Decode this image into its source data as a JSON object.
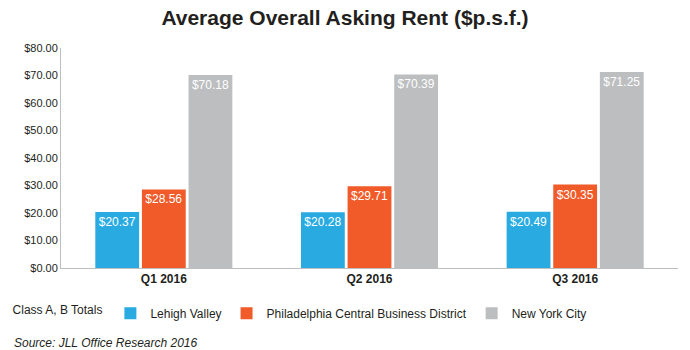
{
  "chart_data": {
    "type": "bar",
    "title": "Average Overall Asking Rent ($p.s.f.)",
    "categories": [
      "Q1 2016",
      "Q2 2016",
      "Q3 2016"
    ],
    "series": [
      {
        "name": "Lehigh Valley",
        "color": "#29abe2",
        "values": [
          20.37,
          20.28,
          20.49
        ],
        "value_labels": [
          "$20.37",
          "$20.28",
          "$20.49"
        ]
      },
      {
        "name": "Philadelphia Central Business District",
        "color": "#f15a29",
        "values": [
          28.56,
          29.71,
          30.35
        ],
        "value_labels": [
          "$28.56",
          "$29.71",
          "$30.35"
        ]
      },
      {
        "name": "New York City",
        "color": "#bcbec0",
        "values": [
          70.18,
          70.39,
          71.25
        ],
        "value_labels": [
          "$70.18",
          "$70.39",
          "$71.25"
        ]
      }
    ],
    "ylim": [
      0,
      80
    ],
    "yticks": [
      {
        "value": 0,
        "label": "$0.00"
      },
      {
        "value": 10,
        "label": "$10.00"
      },
      {
        "value": 20,
        "label": "$20.00"
      },
      {
        "value": 30,
        "label": "$30.00"
      },
      {
        "value": 40,
        "label": "$40.00"
      },
      {
        "value": 50,
        "label": "$50.00"
      },
      {
        "value": 60,
        "label": "$60.00"
      },
      {
        "value": 70,
        "label": "$70.00"
      },
      {
        "value": 80,
        "label": "$80.00"
      }
    ],
    "grid": false,
    "legend": "bottom",
    "legend_title": "Class A, B Totals",
    "source": "Source: JLL Office Research 2016",
    "data_labels": true
  }
}
